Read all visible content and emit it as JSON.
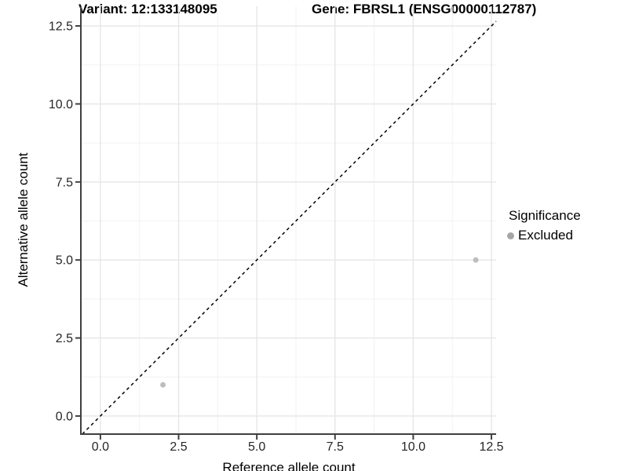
{
  "titles": {
    "variant": "Variant: 12:133148095",
    "gene": "Gene: FBRSL1 (ENSG00000112787)"
  },
  "axes": {
    "x_label": "Reference allele count",
    "y_label": "Alternative allele count"
  },
  "legend": {
    "title": "Significance",
    "items": [
      {
        "label": "Excluded",
        "color": "#a6a6a6"
      }
    ]
  },
  "colors": {
    "background": "#ffffff",
    "grid_major": "#e6e6e6",
    "grid_minor": "#f2f2f2",
    "axis_line": "#404040",
    "tick_text": "#262626",
    "point": "#bdbdbd",
    "identity_line": "#000000"
  },
  "chart_data": {
    "type": "scatter",
    "title_left": "Variant: 12:133148095",
    "title_right": "Gene: FBRSL1 (ENSG00000112787)",
    "xlabel": "Reference allele count",
    "ylabel": "Alternative allele count",
    "xlim": [
      -0.6,
      12.65
    ],
    "ylim": [
      -0.58,
      13.13
    ],
    "x_ticks": [
      0.0,
      2.5,
      5.0,
      7.5,
      10.0,
      12.5
    ],
    "y_ticks": [
      0.0,
      2.5,
      5.0,
      7.5,
      10.0,
      12.5
    ],
    "tick_decimals": 1,
    "grid": "major-and-minor",
    "legend_position": "right",
    "series": [
      {
        "name": "Excluded",
        "color": "#bdbdbd",
        "point_radius": 3.5,
        "points": [
          [
            2,
            1
          ],
          [
            12,
            5
          ]
        ]
      }
    ],
    "reference_line": {
      "type": "identity",
      "equation": "y = x",
      "style": "dashed",
      "color": "#000000"
    }
  }
}
